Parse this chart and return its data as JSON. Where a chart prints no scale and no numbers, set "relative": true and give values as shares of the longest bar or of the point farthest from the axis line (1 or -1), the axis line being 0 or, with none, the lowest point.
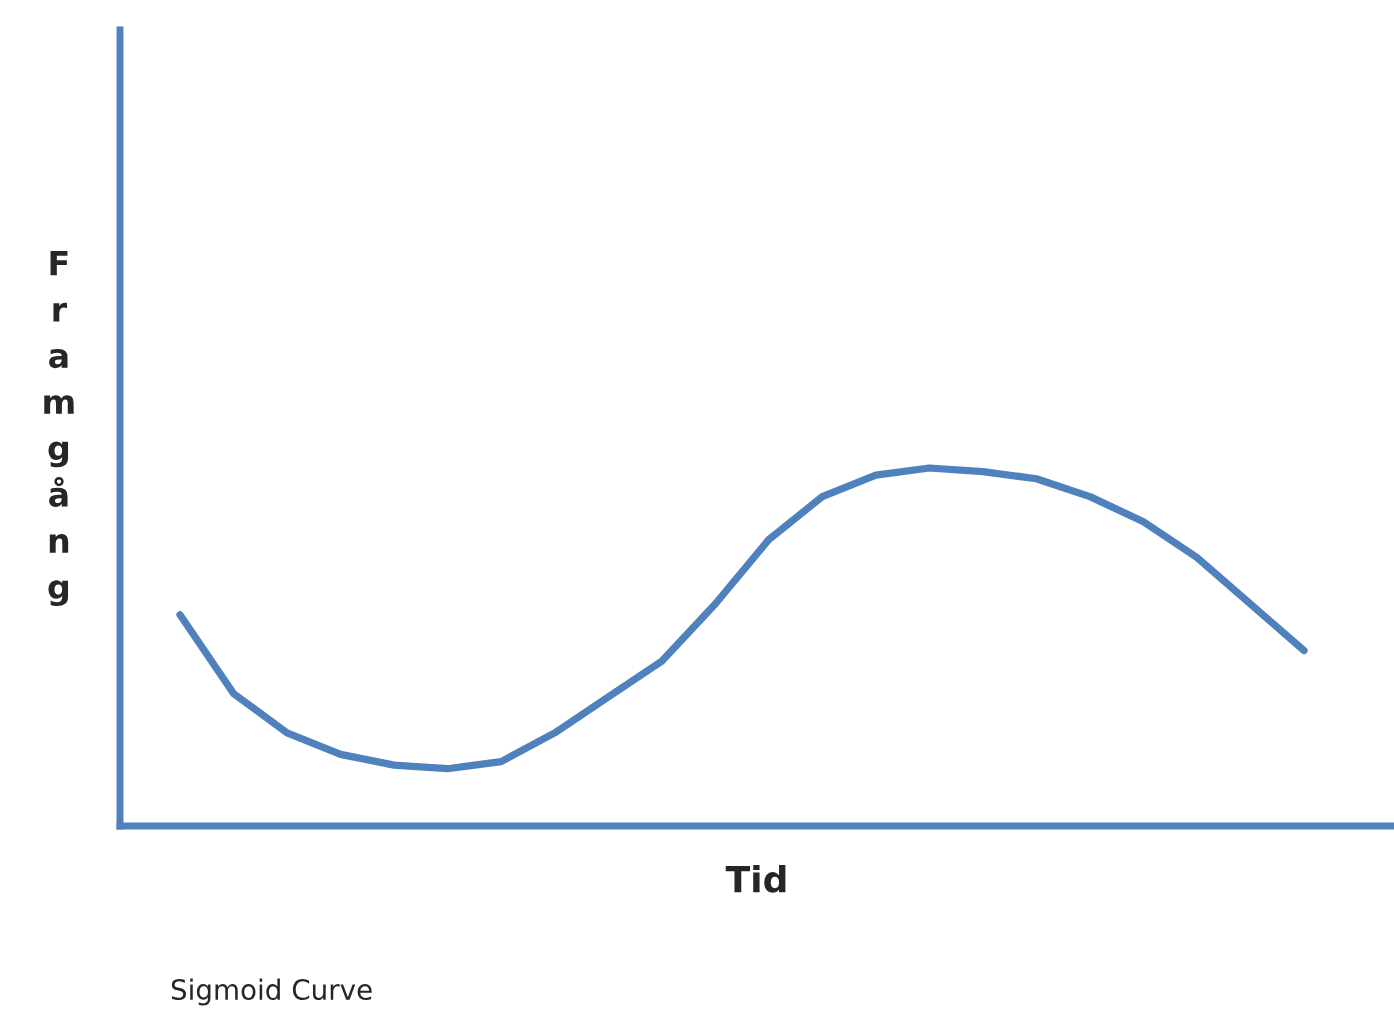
{
  "chart_data": {
    "type": "line",
    "relative": true,
    "xlabel": "Tid",
    "ylabel": "Framgång",
    "annotations": [
      "Sigmoid Curve"
    ],
    "categories": [
      null,
      null,
      null,
      null,
      null,
      null,
      null,
      null,
      null,
      null,
      null,
      null,
      null,
      null,
      null,
      null,
      null,
      null,
      null,
      null,
      null,
      null
    ],
    "series": [
      {
        "color": "#4f81bd",
        "values": [
          0.59,
          0.37,
          0.26,
          0.2,
          0.17,
          0.16,
          0.18,
          0.26,
          0.36,
          0.46,
          0.62,
          0.8,
          0.92,
          0.98,
          1,
          0.99,
          0.97,
          0.92,
          0.85,
          0.75,
          0.62,
          0.49
        ]
      }
    ],
    "grid": false,
    "legend": false,
    "marker": "none",
    "line_style": "solid",
    "tick_labels": false
  }
}
